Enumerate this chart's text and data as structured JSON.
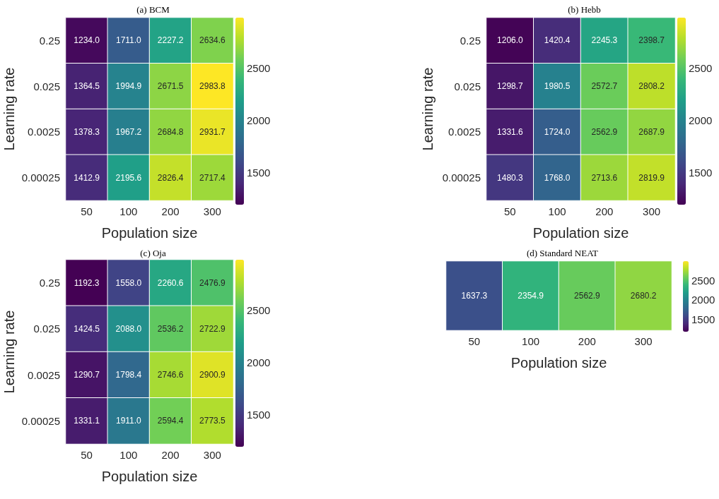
{
  "chart_data": [
    {
      "type": "heatmap",
      "title": "(a) BCM",
      "xlabel": "Population size",
      "ylabel": "Learning rate",
      "categories": [
        "50",
        "100",
        "200",
        "300"
      ],
      "y_categories": [
        "0.25",
        "0.025",
        "0.0025",
        "0.00025"
      ],
      "cells": [
        [
          1234.0,
          1711.0,
          2227.2,
          2634.6
        ],
        [
          1364.5,
          1994.9,
          2671.5,
          2983.8
        ],
        [
          1378.3,
          1967.2,
          2684.8,
          2931.7
        ],
        [
          1412.9,
          2195.6,
          2826.4,
          2717.4
        ]
      ],
      "cell_labels": [
        [
          "1234.0",
          "1711.0",
          "2227.2",
          "2634.6"
        ],
        [
          "1364.5",
          "1994.9",
          "2671.5",
          "2983.8"
        ],
        [
          "1378.3",
          "1967.2",
          "2684.8",
          "2931.7"
        ],
        [
          "1412.9",
          "2195.6",
          "2826.4",
          "2717.4"
        ]
      ],
      "clim": [
        1192.3,
        2983.8
      ],
      "cticks": [
        1500,
        2000,
        2500
      ],
      "colors": [
        "#440154",
        "#482878",
        "#3e4989",
        "#31688e",
        "#26828e",
        "#1f9e89",
        "#35b779",
        "#6ece58",
        "#b5de2b",
        "#fde725"
      ]
    },
    {
      "type": "heatmap",
      "title": "(b) Hebb",
      "xlabel": "Population size",
      "ylabel": "Learning rate",
      "categories": [
        "50",
        "100",
        "200",
        "300"
      ],
      "y_categories": [
        "0.25",
        "0.025",
        "0.0025",
        "0.00025"
      ],
      "cells": [
        [
          1206.0,
          1420.4,
          2245.3,
          2398.7
        ],
        [
          1298.7,
          1980.5,
          2572.7,
          2808.2
        ],
        [
          1331.6,
          1724.0,
          2562.9,
          2687.9
        ],
        [
          1480.3,
          1768.0,
          2713.6,
          2819.9
        ]
      ],
      "cell_labels": [
        [
          "1206.0",
          "1420.4",
          "2245.3",
          "2398.7"
        ],
        [
          "1298.7",
          "1980.5",
          "2572.7",
          "2808.2"
        ],
        [
          "1331.6",
          "1724.0",
          "2562.9",
          "2687.9"
        ],
        [
          "1480.3",
          "1768.0",
          "2713.6",
          "2819.9"
        ]
      ],
      "clim": [
        1192.3,
        2983.8
      ],
      "cticks": [
        1500,
        2000,
        2500
      ],
      "colors": [
        "#440154",
        "#482878",
        "#3e4989",
        "#31688e",
        "#26828e",
        "#1f9e89",
        "#35b779",
        "#6ece58",
        "#b5de2b",
        "#fde725"
      ]
    },
    {
      "type": "heatmap",
      "title": "(c) Oja",
      "xlabel": "Population size",
      "ylabel": "Learning rate",
      "categories": [
        "50",
        "100",
        "200",
        "300"
      ],
      "y_categories": [
        "0.25",
        "0.025",
        "0.0025",
        "0.00025"
      ],
      "cells": [
        [
          1192.3,
          1558.0,
          2260.6,
          2476.9
        ],
        [
          1424.5,
          2088.0,
          2536.2,
          2722.9
        ],
        [
          1290.7,
          1798.4,
          2746.6,
          2900.9
        ],
        [
          1331.1,
          1911.0,
          2594.4,
          2773.5
        ]
      ],
      "cell_labels": [
        [
          "1192.3",
          "1558.0",
          "2260.6",
          "2476.9"
        ],
        [
          "1424.5",
          "2088.0",
          "2536.2",
          "2722.9"
        ],
        [
          "1290.7",
          "1798.4",
          "2746.6",
          "2900.9"
        ],
        [
          "1331.1",
          "1911.0",
          "2594.4",
          "2773.5"
        ]
      ],
      "clim": [
        1192.3,
        2983.8
      ],
      "cticks": [
        1500,
        2000,
        2500
      ],
      "colors": [
        "#440154",
        "#482878",
        "#3e4989",
        "#31688e",
        "#26828e",
        "#1f9e89",
        "#35b779",
        "#6ece58",
        "#b5de2b",
        "#fde725"
      ]
    },
    {
      "type": "heatmap",
      "title": "(d) Standard NEAT",
      "xlabel": "Population size",
      "categories": [
        "50",
        "100",
        "200",
        "300"
      ],
      "y_categories": [
        null
      ],
      "cells": [
        [
          1637.3,
          2354.9,
          2562.9,
          2680.2
        ]
      ],
      "cell_labels": [
        [
          "1637.3",
          "2354.9",
          "2562.9",
          "2680.2"
        ]
      ],
      "clim": [
        1192.3,
        2983.8
      ],
      "cticks": [
        1500,
        2000,
        2500
      ],
      "colors": [
        "#440154",
        "#482878",
        "#3e4989",
        "#31688e",
        "#26828e",
        "#1f9e89",
        "#35b779",
        "#6ece58",
        "#b5de2b",
        "#fde725"
      ]
    }
  ]
}
